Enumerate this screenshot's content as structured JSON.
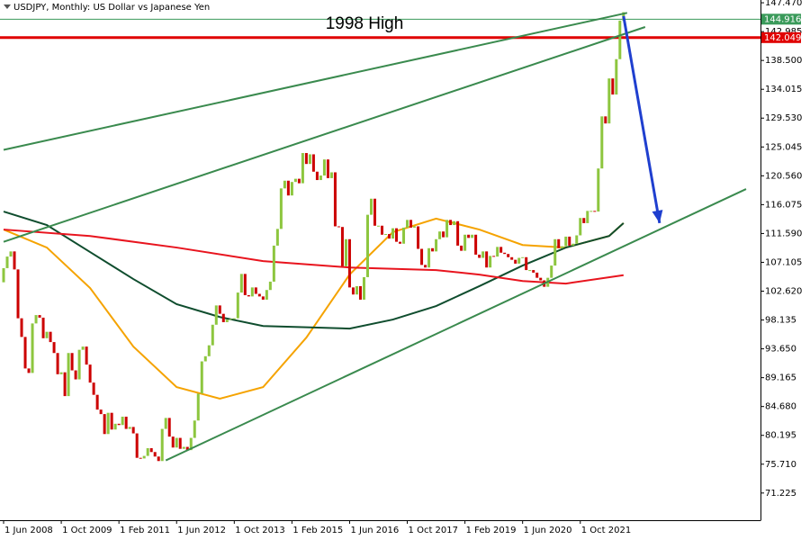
{
  "chart_data": {
    "type": "candlestick",
    "title": "USDJPY, Monthly:  US Dollar vs Japanese Yen",
    "annotation": "1998 High",
    "xlim": [
      "2008-05",
      "2025-12"
    ],
    "xticks": [
      {
        "value": "2008-06",
        "label": "1 Jun 2008"
      },
      {
        "value": "2009-10",
        "label": "1 Oct 2009"
      },
      {
        "value": "2011-02",
        "label": "1 Feb 2011"
      },
      {
        "value": "2012-06",
        "label": "1 Jun 2012"
      },
      {
        "value": "2013-10",
        "label": "1 Oct 2013"
      },
      {
        "value": "2015-02",
        "label": "1 Feb 2015"
      },
      {
        "value": "2016-06",
        "label": "1 Jun 2016"
      },
      {
        "value": "2017-10",
        "label": "1 Oct 2017"
      },
      {
        "value": "2019-02",
        "label": "1 Feb 2019"
      },
      {
        "value": "2020-06",
        "label": "1 Jun 2020"
      },
      {
        "value": "2021-10",
        "label": "1 Oct 2021"
      }
    ],
    "ylim": [
      67.0,
      147.9
    ],
    "yticks": [
      {
        "value": 147.47,
        "label": "147.470"
      },
      142.985,
      {
        "value": 138.5,
        "label": "138.500"
      },
      134.015,
      {
        "value": 129.53,
        "label": "129.530"
      },
      125.045,
      {
        "value": 120.56,
        "label": "120.560"
      },
      116.075,
      {
        "value": 111.59,
        "label": "111.590"
      },
      107.105,
      {
        "value": 102.62,
        "label": "102.620"
      },
      98.135,
      {
        "value": 93.65,
        "label": "93.650"
      },
      89.165,
      {
        "value": 84.68,
        "label": "84.680"
      },
      80.195,
      {
        "value": 75.71,
        "label": "75.710"
      },
      71.225
    ],
    "up_color": "#8dc63f",
    "down_color": "#cc0000",
    "x": [
      "2008-06",
      "2008-07",
      "2008-08",
      "2008-09",
      "2008-10",
      "2008-11",
      "2008-12",
      "2009-01",
      "2009-02",
      "2009-03",
      "2009-04",
      "2009-05",
      "2009-06",
      "2009-07",
      "2009-08",
      "2009-09",
      "2009-10",
      "2009-11",
      "2009-12",
      "2010-01",
      "2010-02",
      "2010-03",
      "2010-04",
      "2010-05",
      "2010-06",
      "2010-07",
      "2010-08",
      "2010-09",
      "2010-10",
      "2010-11",
      "2010-12",
      "2011-01",
      "2011-02",
      "2011-03",
      "2011-04",
      "2011-05",
      "2011-06",
      "2011-07",
      "2011-08",
      "2011-09",
      "2011-10",
      "2011-11",
      "2011-12",
      "2012-01",
      "2012-02",
      "2012-03",
      "2012-04",
      "2012-05",
      "2012-06",
      "2012-07",
      "2012-08",
      "2012-09",
      "2012-10",
      "2012-11",
      "2012-12",
      "2013-01",
      "2013-02",
      "2013-03",
      "2013-04",
      "2013-05",
      "2013-06",
      "2013-07",
      "2013-08",
      "2013-09",
      "2013-10",
      "2013-11",
      "2013-12",
      "2014-01",
      "2014-02",
      "2014-03",
      "2014-04",
      "2014-05",
      "2014-06",
      "2014-07",
      "2014-08",
      "2014-09",
      "2014-10",
      "2014-11",
      "2014-12",
      "2015-01",
      "2015-02",
      "2015-03",
      "2015-04",
      "2015-05",
      "2015-06",
      "2015-07",
      "2015-08",
      "2015-09",
      "2015-10",
      "2015-11",
      "2015-12",
      "2016-01",
      "2016-02",
      "2016-03",
      "2016-04",
      "2016-05",
      "2016-06",
      "2016-07",
      "2016-08",
      "2016-09",
      "2016-10",
      "2016-11",
      "2016-12",
      "2017-01",
      "2017-02",
      "2017-03",
      "2017-04",
      "2017-05",
      "2017-06",
      "2017-07",
      "2017-08",
      "2017-09",
      "2017-10",
      "2017-11",
      "2017-12",
      "2018-01",
      "2018-02",
      "2018-03",
      "2018-04",
      "2018-05",
      "2018-06",
      "2018-07",
      "2018-08",
      "2018-09",
      "2018-10",
      "2018-11",
      "2018-12",
      "2019-01",
      "2019-02",
      "2019-03",
      "2019-04",
      "2019-05",
      "2019-06",
      "2019-07",
      "2019-08",
      "2019-09",
      "2019-10",
      "2019-11",
      "2019-12",
      "2020-01",
      "2020-02",
      "2020-03",
      "2020-04",
      "2020-05",
      "2020-06",
      "2020-07",
      "2020-08",
      "2020-09",
      "2020-10",
      "2020-11",
      "2020-12",
      "2021-01",
      "2021-02",
      "2021-03",
      "2021-04",
      "2021-05",
      "2021-06",
      "2021-07",
      "2021-08",
      "2021-09",
      "2021-10",
      "2021-11",
      "2021-12",
      "2022-01",
      "2022-02",
      "2022-03",
      "2022-04",
      "2022-05",
      "2022-06",
      "2022-07",
      "2022-08",
      "2022-09",
      "2022-10"
    ],
    "open": [
      104.0,
      106.2,
      108.0,
      108.8,
      106.0,
      98.4,
      95.5,
      90.6,
      89.9,
      97.6,
      98.9,
      98.5,
      95.3,
      96.3,
      94.7,
      93.0,
      89.7,
      90.0,
      86.3,
      93.0,
      90.3,
      88.9,
      93.5,
      94.0,
      91.2,
      88.4,
      86.5,
      84.2,
      83.5,
      80.4,
      83.7,
      81.1,
      82.0,
      81.8,
      83.1,
      81.2,
      81.5,
      80.5,
      76.7,
      76.6,
      77.0,
      78.2,
      77.6,
      76.9,
      76.2,
      81.2,
      82.9,
      80.0,
      78.3,
      79.8,
      78.1,
      78.4,
      77.9,
      79.8,
      82.5,
      86.7,
      91.7,
      92.5,
      94.2,
      97.4,
      100.4,
      99.1,
      97.8,
      98.2,
      98.3,
      98.4,
      102.4,
      105.3,
      102.0,
      101.8,
      103.2,
      102.2,
      101.8,
      101.3,
      102.8,
      104.1,
      109.7,
      112.3,
      118.6,
      119.8,
      117.5,
      119.6,
      120.1,
      119.4,
      124.1,
      122.4,
      123.9,
      121.2,
      119.9,
      120.6,
      123.1,
      120.2,
      121.1,
      112.7,
      112.6,
      106.5,
      110.7,
      103.2,
      102.1,
      103.4,
      101.3,
      104.8,
      114.5,
      117.0,
      112.8,
      112.8,
      111.4,
      111.5,
      110.8,
      112.4,
      110.3,
      110.0,
      112.5,
      113.7,
      112.5,
      112.7,
      109.2,
      106.7,
      106.3,
      109.3,
      108.8,
      110.7,
      111.9,
      111.0,
      113.7,
      112.9,
      113.5,
      109.7,
      108.9,
      111.4,
      110.9,
      111.4,
      108.3,
      107.8,
      108.8,
      106.3,
      108.1,
      108.0,
      109.5,
      108.6,
      108.4,
      107.9,
      107.5,
      106.9,
      107.8,
      107.9,
      105.9,
      105.9,
      105.5,
      104.7,
      104.3,
      103.3,
      104.7,
      106.6,
      110.7,
      109.3,
      109.6,
      111.1,
      109.7,
      110.0,
      111.3,
      114.0,
      113.2,
      115.1,
      115.1,
      115.0,
      121.7,
      129.8,
      128.7,
      135.7,
      133.2,
      138.7,
      144.7
    ],
    "close": [
      106.2,
      108.0,
      108.8,
      106.0,
      98.4,
      95.5,
      90.6,
      89.9,
      97.6,
      98.9,
      98.5,
      95.3,
      96.3,
      94.7,
      93.0,
      89.7,
      90.0,
      86.3,
      93.0,
      90.3,
      88.9,
      93.5,
      94.0,
      91.2,
      88.4,
      86.5,
      84.2,
      83.5,
      80.4,
      83.7,
      81.1,
      82.0,
      81.8,
      83.1,
      81.2,
      81.5,
      80.5,
      76.7,
      76.6,
      77.0,
      78.2,
      77.6,
      76.9,
      76.2,
      81.2,
      82.9,
      80.0,
      78.3,
      79.8,
      78.1,
      78.4,
      77.9,
      79.8,
      82.5,
      86.7,
      91.7,
      92.5,
      94.2,
      97.4,
      100.4,
      99.1,
      97.8,
      98.2,
      98.3,
      98.4,
      102.4,
      105.3,
      102.0,
      101.8,
      103.2,
      102.2,
      101.8,
      101.3,
      102.8,
      104.1,
      109.7,
      112.3,
      118.6,
      119.8,
      117.5,
      119.6,
      120.1,
      119.4,
      124.1,
      122.4,
      123.9,
      121.2,
      119.9,
      120.6,
      123.1,
      120.2,
      121.1,
      112.7,
      112.6,
      106.5,
      110.7,
      103.2,
      102.1,
      103.4,
      101.3,
      104.8,
      114.5,
      117.0,
      112.8,
      112.8,
      111.4,
      111.5,
      110.8,
      112.4,
      110.3,
      110.0,
      112.5,
      113.7,
      112.5,
      112.7,
      109.2,
      106.7,
      106.3,
      109.3,
      108.8,
      110.7,
      111.9,
      111.0,
      113.7,
      112.9,
      113.5,
      109.7,
      108.9,
      111.4,
      110.9,
      111.4,
      108.3,
      107.8,
      108.8,
      106.3,
      108.1,
      108.0,
      109.5,
      108.6,
      108.4,
      107.9,
      107.5,
      106.9,
      107.8,
      107.9,
      105.9,
      105.9,
      105.5,
      104.7,
      104.3,
      103.3,
      104.7,
      106.6,
      110.7,
      109.3,
      109.6,
      111.1,
      109.7,
      110.0,
      111.3,
      114.0,
      113.2,
      115.1,
      115.1,
      115.0,
      121.7,
      129.8,
      128.7,
      135.7,
      133.2,
      138.7,
      144.7,
      146.0
    ],
    "overlays": [
      {
        "color": "#f5a300",
        "x": [
          "2008-06",
          "2009-06",
          "2010-06",
          "2011-06",
          "2012-06",
          "2013-06",
          "2014-06",
          "2015-06",
          "2016-06",
          "2017-06",
          "2018-06",
          "2019-06",
          "2020-06",
          "2021-06",
          "2022-06",
          "2022-10"
        ],
        "values": [
          112.2,
          109.4,
          103.1,
          94.0,
          87.7,
          85.9,
          87.7,
          95.4,
          105.2,
          111.8,
          113.9,
          112.2,
          109.8,
          109.4,
          111.2,
          113.2
        ]
      },
      {
        "color": "#0f4d2e",
        "x": [
          "2008-06",
          "2009-06",
          "2010-06",
          "2011-06",
          "2012-06",
          "2013-06",
          "2014-06",
          "2015-06",
          "2016-06",
          "2017-06",
          "2018-06",
          "2019-06",
          "2020-06",
          "2021-06",
          "2022-06",
          "2022-10"
        ],
        "values": [
          115.0,
          112.9,
          108.7,
          104.5,
          100.6,
          98.6,
          97.2,
          97.0,
          96.8,
          98.2,
          100.3,
          103.4,
          106.6,
          109.4,
          111.2,
          113.2
        ]
      },
      {
        "color": "#e8141e",
        "x": [
          "2008-06",
          "2010-06",
          "2012-06",
          "2014-06",
          "2016-06",
          "2018-06",
          "2019-06",
          "2020-06",
          "2021-06",
          "2022-10"
        ],
        "values": [
          112.2,
          111.2,
          109.4,
          107.3,
          106.3,
          105.9,
          105.2,
          104.2,
          103.8,
          105.1
        ]
      }
    ],
    "trendlines": [
      {
        "color": "#3a8a4e",
        "x": [
          "2008-06",
          "2022-11"
        ],
        "values": [
          124.6,
          145.9
        ]
      },
      {
        "color": "#3a8a4e",
        "x": [
          "2008-06",
          "2023-04"
        ],
        "values": [
          110.3,
          143.7
        ]
      },
      {
        "color": "#3a8a4e",
        "x": [
          "2012-03",
          "2025-08"
        ],
        "values": [
          76.3,
          118.5
        ]
      }
    ],
    "arrow": {
      "color": "#1f3fcf",
      "x": [
        "2022-10",
        "2023-08"
      ],
      "values": [
        145.4,
        113.2
      ]
    },
    "levels": [
      {
        "value": 144.916,
        "color": "#3a9a5a",
        "width": 1
      },
      {
        "value": 142.049,
        "color": "#e00000",
        "width": 3
      }
    ]
  }
}
